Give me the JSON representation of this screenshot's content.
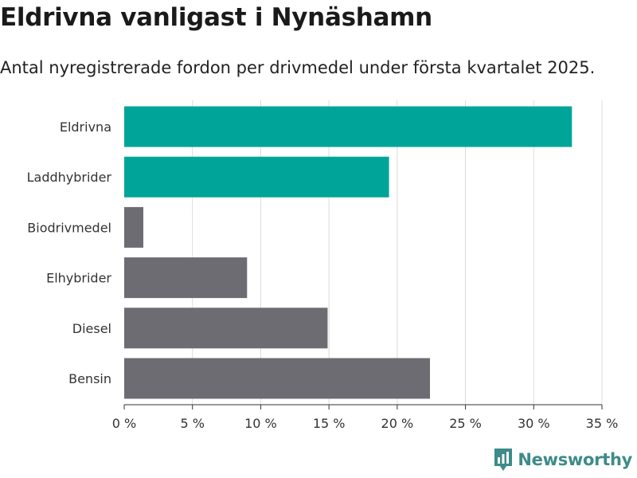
{
  "header": {
    "title": "Eldrivna vanligast i Nynäshamn",
    "subtitle": "Antal nyregistrerade fordon per drivmedel under första kvartalet 2025."
  },
  "brand": {
    "name": "Newsworthy",
    "icon": "newsworthy-logo-icon",
    "color": "#3d8b8a"
  },
  "colors": {
    "highlight": "#00a499",
    "default": "#6d6c72",
    "grid": "#dcdcdc",
    "axis": "#333333"
  },
  "chart_data": {
    "type": "bar",
    "orientation": "horizontal",
    "categories": [
      "Eldrivna",
      "Laddhybrider",
      "Biodrivmedel",
      "Elhybrider",
      "Diesel",
      "Bensin"
    ],
    "values": [
      32.8,
      19.4,
      1.4,
      9.0,
      14.9,
      22.4
    ],
    "highlighted": [
      true,
      true,
      false,
      false,
      false,
      false
    ],
    "xlim": [
      0,
      35
    ],
    "ticks": [
      0,
      5,
      10,
      15,
      20,
      25,
      30,
      35
    ],
    "tick_labels": [
      "0 %",
      "5 %",
      "10 %",
      "15 %",
      "20 %",
      "25 %",
      "30 %",
      "35 %"
    ],
    "grid": true,
    "legend": "none"
  }
}
